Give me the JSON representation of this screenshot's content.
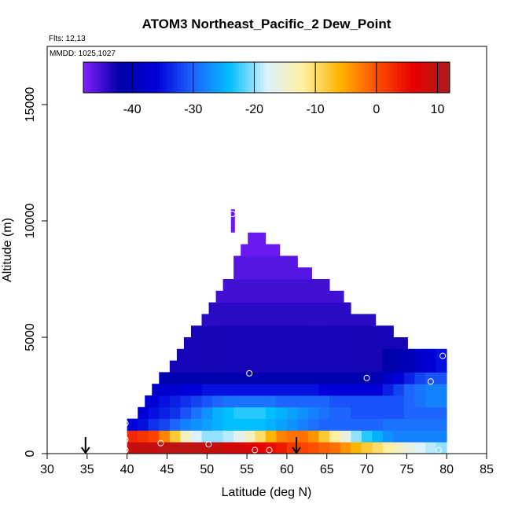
{
  "chart_data": {
    "type": "heatmap",
    "title": "ATOM3 Northeast_Pacific_2 Dew_Point",
    "flights_label": "Flts: 12,13",
    "dates_label": "MMDD: 1025,1027",
    "xlabel": "Latitude (deg N)",
    "ylabel": "Altitude (m)",
    "xlim": [
      30,
      85
    ],
    "ylim": [
      0,
      17500
    ],
    "x_ticks": [
      30,
      35,
      40,
      45,
      50,
      55,
      60,
      65,
      70,
      75,
      80,
      85
    ],
    "y_ticks": [
      0,
      5000,
      10000,
      15000
    ],
    "grid": false,
    "colorbar": {
      "placement": "top",
      "range": [
        -48,
        12
      ],
      "ticks": [
        -40,
        -30,
        -20,
        -10,
        0,
        10
      ],
      "colors": [
        "#7f1fff",
        "#0000a8",
        "#0000d8",
        "#1e64ff",
        "#00bfff",
        "#dcf2ff",
        "#fff0a0",
        "#ffb400",
        "#ff5000",
        "#e60000",
        "#a81c1c"
      ]
    },
    "top_profile": {
      "lat": [
        40,
        41,
        42,
        43,
        44,
        45,
        46,
        47,
        48,
        49,
        50,
        51,
        52,
        53,
        54,
        55,
        56,
        57,
        58,
        59,
        60,
        61,
        62,
        63,
        64,
        65,
        66,
        67,
        68,
        69,
        70,
        71,
        72,
        73,
        74,
        75,
        76,
        77,
        78,
        79
      ],
      "top": [
        1500,
        2000,
        2500,
        3000,
        3500,
        4000,
        4500,
        5000,
        5500,
        6000,
        6500,
        7000,
        7500,
        8500,
        9000,
        9500,
        9500,
        9000,
        9000,
        8500,
        8500,
        8000,
        8000,
        7500,
        7500,
        7000,
        7000,
        6500,
        6000,
        6000,
        6000,
        5500,
        5500,
        5000,
        5000,
        4500,
        4500,
        4500,
        4500,
        4500
      ]
    },
    "spike": {
      "lat": [
        53,
        53.5
      ],
      "top": 10500
    },
    "layers": [
      {
        "bottom": 0,
        "top": 500,
        "values": [
          9,
          9,
          9,
          10,
          10,
          10,
          10,
          9,
          9,
          8,
          8,
          7,
          6,
          5,
          4,
          2,
          1,
          0,
          -1,
          -2,
          -4,
          -6,
          -8,
          -10,
          -12,
          -14,
          -16,
          -18,
          -19,
          -20
        ]
      },
      {
        "bottom": 500,
        "top": 1000,
        "values": [
          3,
          2,
          1,
          -3,
          -8,
          -14,
          -18,
          -20,
          -20,
          -19,
          -17,
          -14,
          -10,
          -6,
          -3,
          -2,
          -2,
          -4,
          -8,
          -12,
          -16,
          -20,
          -23,
          -25,
          -27,
          -28,
          -28,
          -28,
          -28,
          -28
        ]
      },
      {
        "bottom": 1000,
        "top": 1500,
        "values": [
          -36,
          -35,
          -33,
          -32,
          -30,
          -28,
          -27,
          -26,
          -25,
          -24,
          -24,
          -24,
          -24,
          -25,
          -26,
          -27,
          -28,
          -29,
          -30,
          -30,
          -30,
          -30,
          -30,
          -30,
          -29,
          -29,
          -29,
          -29,
          -29,
          -29
        ]
      },
      {
        "bottom": 1500,
        "top": 2000,
        "values": [
          -36,
          -36,
          -35,
          -34,
          -33,
          -31,
          -29,
          -27,
          -25,
          -24,
          -23,
          -23,
          -23,
          -24,
          -25,
          -26,
          -27,
          -28,
          -29,
          -30,
          -30,
          -31,
          -31,
          -31,
          -31,
          -31,
          -30,
          -30,
          -30,
          -30
        ]
      },
      {
        "bottom": 2000,
        "top": 2500,
        "values": [
          -36,
          -36,
          -36,
          -35,
          -34,
          -33,
          -32,
          -31,
          -30,
          -29,
          -29,
          -29,
          -29,
          -29,
          -30,
          -30,
          -30,
          -30,
          -30,
          -31,
          -31,
          -31,
          -31,
          -31,
          -31,
          -31,
          -30,
          -29,
          -28,
          -28
        ]
      },
      {
        "bottom": 2500,
        "top": 3000,
        "values": [
          -38,
          -38,
          -38,
          -37,
          -37,
          -36,
          -36,
          -35,
          -35,
          -35,
          -35,
          -35,
          -35,
          -35,
          -35,
          -35,
          -35,
          -35,
          -36,
          -36,
          -36,
          -36,
          -36,
          -36,
          -34,
          -32,
          -30,
          -29,
          -28,
          -28
        ]
      },
      {
        "bottom": 3000,
        "top": 3500,
        "values": [
          -42,
          -42,
          -42,
          -41,
          -41,
          -41,
          -41,
          -41,
          -41,
          -41,
          -41,
          -41,
          -41,
          -41,
          -41,
          -41,
          -41,
          -41,
          -41,
          -41,
          -41,
          -41,
          -41,
          -40,
          -38,
          -36,
          -34,
          -32,
          -31,
          -31
        ]
      },
      {
        "bottom": 3500,
        "top": 4500,
        "values": [
          -43,
          -43,
          -43,
          -43,
          -43,
          -43,
          -43,
          -43,
          -43,
          -43,
          -43,
          -43,
          -43,
          -43,
          -43,
          -43,
          -43,
          -43,
          -43,
          -43,
          -43,
          -43,
          -43,
          -43,
          -42,
          -41,
          -40,
          -38,
          -36,
          -35
        ]
      },
      {
        "bottom": 4500,
        "top": 5500,
        "values": [
          -43,
          -43,
          -43,
          -43,
          -43,
          -43,
          -43,
          -43,
          -43,
          -43,
          -43,
          -43,
          -43,
          -43,
          -43,
          -43,
          -43,
          -43,
          -43,
          -43,
          -43,
          -43,
          -43,
          -43,
          -43,
          -43,
          -43,
          -43,
          -43,
          -43
        ]
      },
      {
        "bottom": 5500,
        "top": 6500,
        "values": [
          -44,
          -44,
          -44,
          -44,
          -44,
          -44,
          -44,
          -44,
          -44,
          -44,
          -44,
          -44,
          -44,
          -44,
          -44,
          -44,
          -44,
          -44,
          -44,
          -44,
          -44,
          -44,
          -44,
          -44,
          -44,
          -44,
          -44,
          -44,
          -44,
          -44
        ]
      },
      {
        "bottom": 6500,
        "top": 7500,
        "values": [
          -45,
          -45,
          -45,
          -45,
          -45,
          -45,
          -45,
          -45,
          -45,
          -45,
          -45,
          -45,
          -45,
          -45,
          -45,
          -45,
          -45,
          -45,
          -45,
          -45,
          -45,
          -45,
          -45,
          -45,
          -45,
          -45,
          -45,
          -45,
          -45,
          -45
        ]
      },
      {
        "bottom": 7500,
        "top": 8500,
        "values": [
          -46,
          -46,
          -46,
          -46,
          -46,
          -46,
          -46,
          -46,
          -46,
          -46,
          -46,
          -46,
          -46,
          -46,
          -46,
          -46,
          -46,
          -46,
          -46,
          -46,
          -46,
          -46,
          -46,
          -46,
          -46,
          -46,
          -46,
          -46,
          -46,
          -46
        ]
      },
      {
        "bottom": 8500,
        "top": 10500,
        "values": [
          -47,
          -47,
          -47,
          -47,
          -47,
          -47,
          -47,
          -47,
          -47,
          -47,
          -47,
          -47,
          -47,
          -47,
          -47,
          -47,
          -47,
          -47,
          -47,
          -47,
          -47,
          -47,
          -47,
          -47,
          -47,
          -47,
          -47,
          -47,
          -47,
          -47
        ]
      }
    ],
    "observations": [
      {
        "lat": 53.2,
        "alt": 10300
      },
      {
        "lat": 39.8,
        "alt": 1300
      },
      {
        "lat": 39.8,
        "alt": 600
      },
      {
        "lat": 39.8,
        "alt": 150
      },
      {
        "lat": 44.2,
        "alt": 450
      },
      {
        "lat": 50.2,
        "alt": 400
      },
      {
        "lat": 55.3,
        "alt": 3450
      },
      {
        "lat": 56.0,
        "alt": 150
      },
      {
        "lat": 57.8,
        "alt": 150
      },
      {
        "lat": 70.0,
        "alt": 3250
      },
      {
        "lat": 78.0,
        "alt": 3100
      },
      {
        "lat": 79.5,
        "alt": 4200
      },
      {
        "lat": 79.0,
        "alt": 150
      }
    ],
    "markers": [
      {
        "lat": 34.8,
        "alt": 0
      },
      {
        "lat": 61.2,
        "alt": 0
      }
    ]
  }
}
